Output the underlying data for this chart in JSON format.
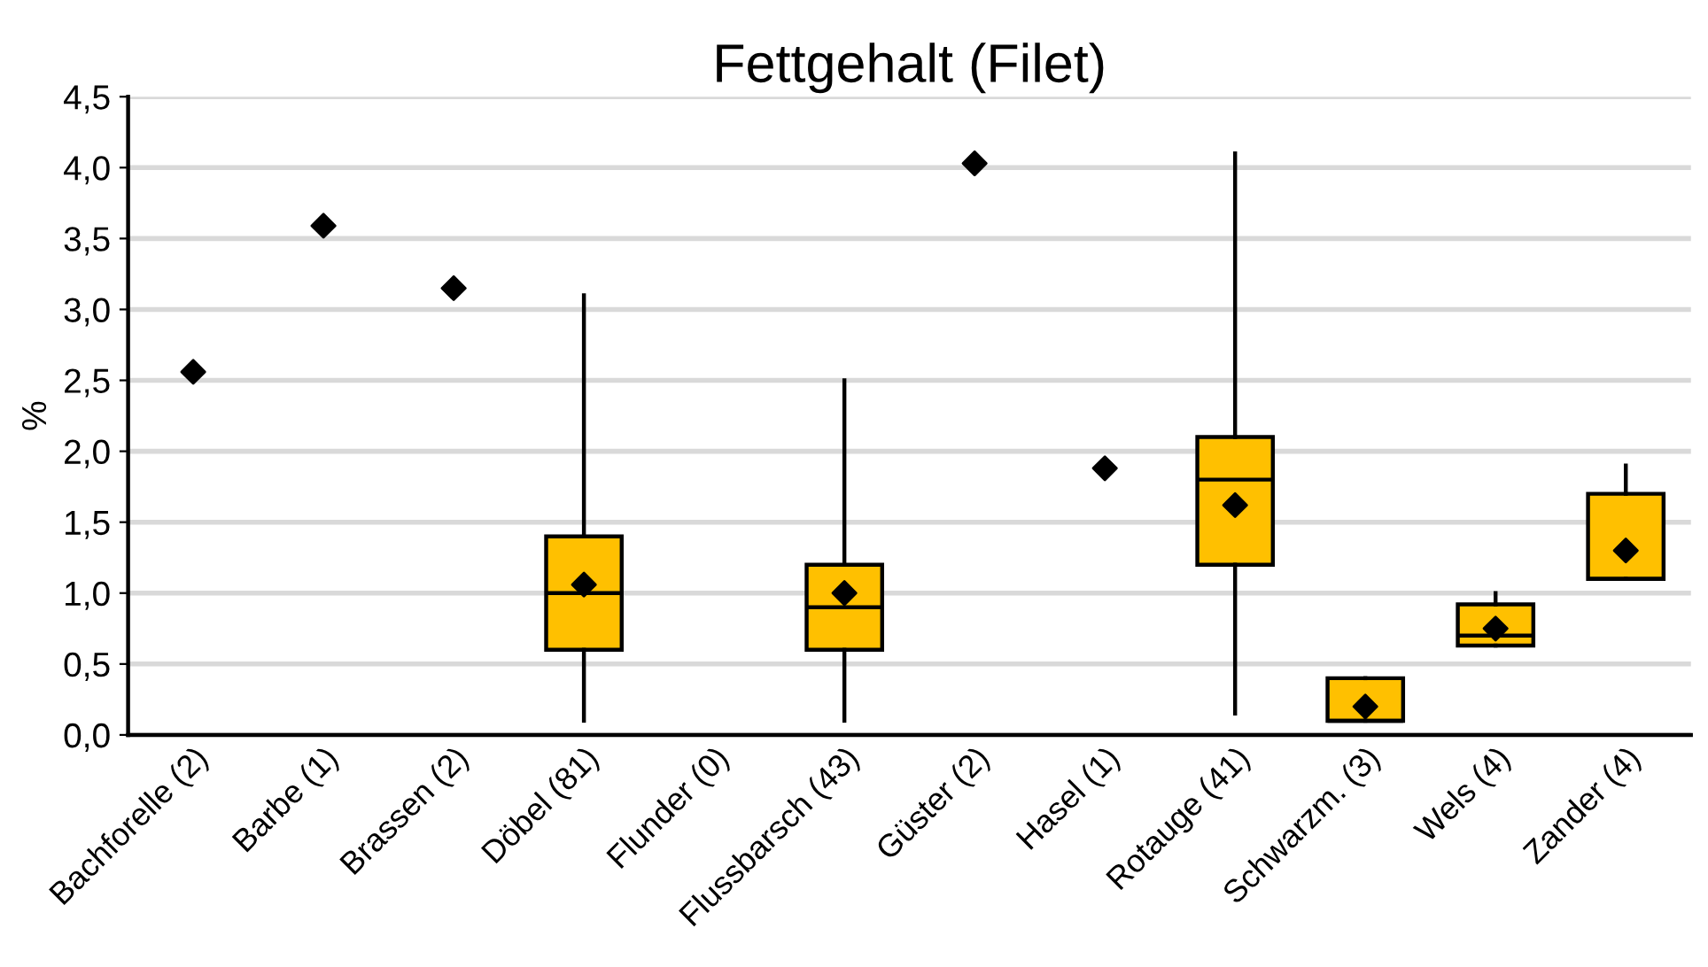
{
  "chart_data": {
    "type": "box",
    "title": "Fettgehalt (Filet)",
    "ylabel": "%",
    "categories": [
      "Bachforelle (2)",
      "Barbe (1)",
      "Brassen (2)",
      "Döbel (81)",
      "Flunder (0)",
      "Flussbarsch (43)",
      "Güster (2)",
      "Hasel (1)",
      "Rotauge (41)",
      "Schwarzm. (3)",
      "Wels (4)",
      "Zander (4)"
    ],
    "series": [
      {
        "color": "#ffc000",
        "boxes": [
          null,
          null,
          null,
          {
            "low": 0.1,
            "q1": 0.6,
            "median": 1.0,
            "q3": 1.4,
            "high": 3.1
          },
          null,
          {
            "low": 0.1,
            "q1": 0.6,
            "median": 0.9,
            "q3": 1.2,
            "high": 2.5
          },
          null,
          null,
          {
            "low": 0.15,
            "q1": 1.2,
            "median": 1.8,
            "q3": 2.1,
            "high": 4.1
          },
          {
            "low": 0.1,
            "q1": 0.1,
            "median": 0.1,
            "q3": 0.4,
            "high": 0.4
          },
          {
            "low": 0.63,
            "q1": 0.63,
            "median": 0.7,
            "q3": 0.92,
            "high": 1.0
          },
          {
            "low": 1.1,
            "q1": 1.1,
            "median": 1.1,
            "q3": 1.7,
            "high": 1.9
          }
        ]
      },
      {
        "type": "scatter",
        "color": "#000000",
        "marker": "diamond",
        "x": [
          "Bachforelle (2)",
          "Barbe (1)",
          "Brassen (2)",
          "Döbel (81)",
          "Flunder (0)",
          "Flussbarsch (43)",
          "Güster (2)",
          "Hasel (1)",
          "Rotauge (41)",
          "Schwarzm. (3)",
          "Wels (4)",
          "Zander (4)"
        ],
        "values": [
          2.56,
          3.59,
          3.15,
          1.06,
          null,
          1.0,
          4.03,
          1.88,
          1.62,
          0.2,
          0.75,
          1.3
        ]
      }
    ],
    "ylim": [
      0,
      4.5
    ],
    "yticks": [
      {
        "value": 0,
        "label": "0,0"
      },
      {
        "value": 0.5,
        "label": "0,5"
      },
      {
        "value": 1,
        "label": "1,0"
      },
      {
        "value": 1.5,
        "label": "1,5"
      },
      {
        "value": 2,
        "label": "2,0"
      },
      {
        "value": 2.5,
        "label": "2,5"
      },
      {
        "value": 3,
        "label": "3,0"
      },
      {
        "value": 3.5,
        "label": "3,5"
      },
      {
        "value": 4,
        "label": "4,0"
      },
      {
        "value": 4.5,
        "label": "4,5"
      }
    ],
    "grid": "y"
  }
}
